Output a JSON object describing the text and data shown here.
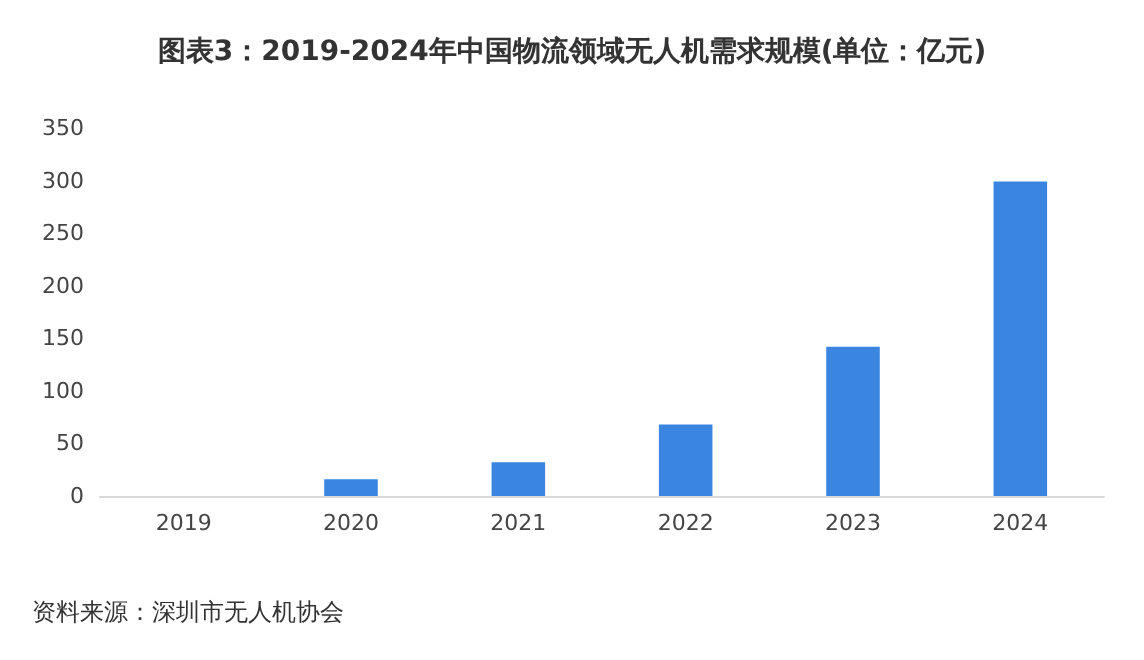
{
  "chart_data": {
    "type": "bar",
    "title": "图表3：2019-2024年中国物流领域无人机需求规模(单位：亿元)",
    "categories": [
      "2019",
      "2020",
      "2021",
      "2022",
      "2023",
      "2024"
    ],
    "values": [
      0,
      16,
      32,
      68,
      142,
      299
    ],
    "color": "#3a85e0",
    "ylim": [
      0,
      350
    ],
    "yticks": [
      0,
      50,
      100,
      150,
      200,
      250,
      300,
      350
    ],
    "grid": false,
    "annotations": [
      "资料来源：深圳市无人机协会"
    ]
  }
}
